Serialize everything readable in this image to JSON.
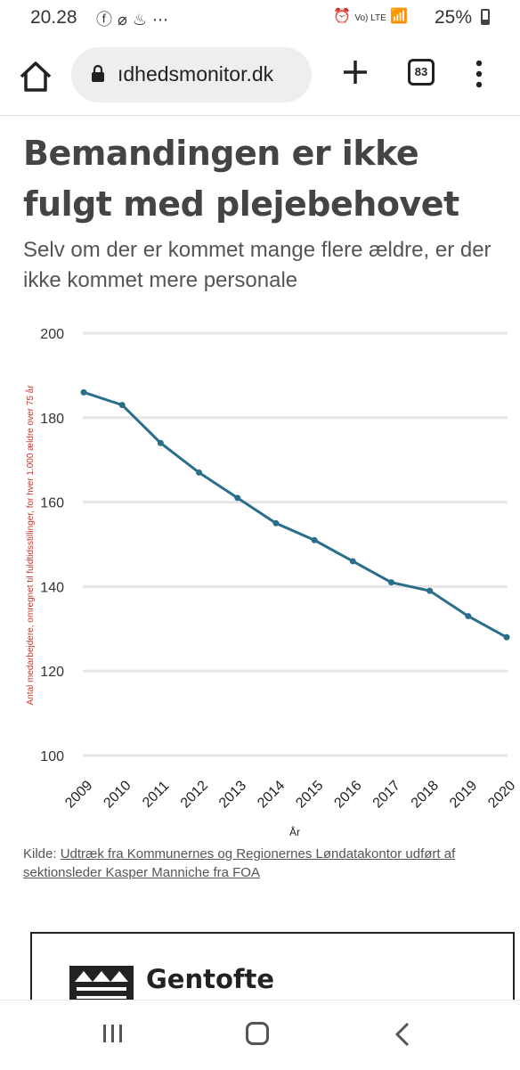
{
  "status_bar": {
    "time": "20.28",
    "left_icons": [
      "facebook-icon",
      "alarm-off-icon",
      "notification-icon",
      "more-icon"
    ],
    "right_icons": [
      "alarm-icon",
      "volte-icon",
      "wifi-icon",
      "signal-icon"
    ],
    "volte_label": "Vo) LTE",
    "battery": "25%"
  },
  "browser": {
    "url": "ıdhedsmonitor.dk",
    "tab_count": "83"
  },
  "article": {
    "headline": "Bemandingen er ikke fulgt med plejebehovet",
    "subheading": "Selv om der er kommet mange flere ældre, er der ikke kommet mere personale"
  },
  "chart_data": {
    "type": "line",
    "x": [
      "2009",
      "2010",
      "2011",
      "2012",
      "2013",
      "2014",
      "2015",
      "2016",
      "2017",
      "2018",
      "2019",
      "2020"
    ],
    "series": [
      {
        "values": [
          186,
          183,
          174,
          167,
          161,
          155,
          151,
          146,
          141,
          139,
          133,
          128
        ]
      }
    ],
    "ylabel": "Antal medarbejdere, omregnet til fuldtidsstillinger, for hver 1.000 ældre over 75 år",
    "xlabel": "År",
    "ylim": [
      100,
      200
    ],
    "yticks": [
      100,
      120,
      140,
      160,
      180,
      200
    ],
    "grid": true,
    "colors": {
      "line": "#2a6e8c",
      "ylabel": "#c0392b",
      "grid": "#e6e6e6"
    }
  },
  "source": {
    "prefix": "Kilde: ",
    "link_text": "Udtræk fra Kommunernes og Regionernes Løndatakontor udført af sektionsleder Kasper Manniche fra FOA"
  },
  "ad": {
    "title": "Gentofte"
  }
}
